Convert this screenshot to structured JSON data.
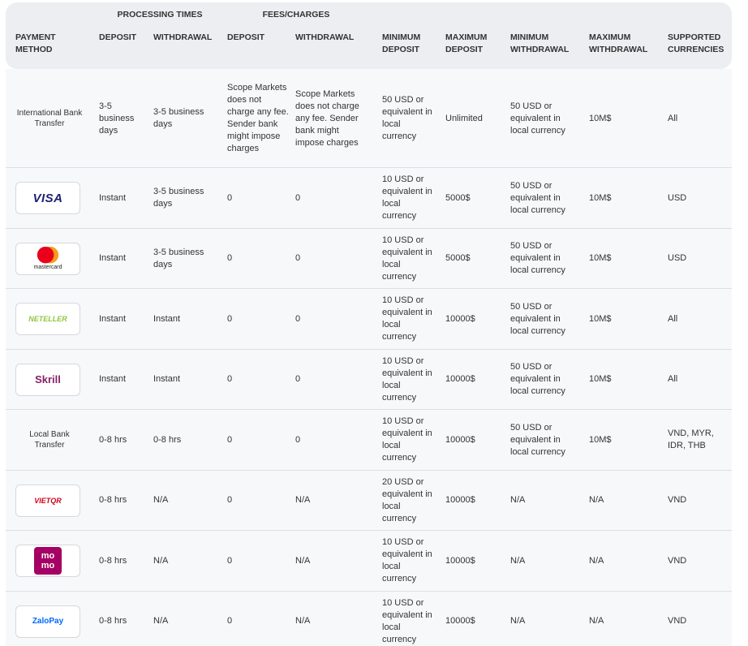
{
  "header": {
    "groups": [
      "PROCESSING TIMES",
      "FEES/CHARGES"
    ],
    "columns": [
      "PAYMENT METHOD",
      "DEPOSIT",
      "WITHDRAWAL",
      "DEPOSIT",
      "WITHDRAWAL",
      "MINIMUM DEPOSIT",
      "MAXIMUM DEPOSIT",
      "MINIMUM WITHDRAWAL",
      "MAXIMUM WITHDRAWAL",
      "SUPPORTED CURRENCIES"
    ]
  },
  "table": {
    "rows": [
      {
        "method": "International Bank Transfer",
        "cells": [
          "3-5 business days",
          "3-5 business days",
          "Scope Markets does not charge any fee. Sender bank might impose charges",
          "Scope Markets does not charge any fee. Sender bank might impose charges",
          "50 USD or equivalent in local currency",
          "Unlimited",
          "50 USD or equivalent in local currency",
          "10M$",
          "All"
        ]
      },
      {
        "logo": "VISA",
        "cells": [
          "Instant",
          "3-5 business days",
          "0",
          "0",
          "10 USD or equivalent in local currency",
          "5000$",
          "50 USD or equivalent in local currency",
          "10M$",
          "USD"
        ]
      },
      {
        "logo": "mastercard",
        "cells": [
          "Instant",
          "3-5 business days",
          "0",
          "0",
          "10 USD or equivalent in local currency",
          "5000$",
          "50 USD or equivalent in local currency",
          "10M$",
          "USD"
        ]
      },
      {
        "logo": "NETELLER",
        "cells": [
          "Instant",
          "Instant",
          "0",
          "0",
          "10 USD or equivalent in local currency",
          "10000$",
          "50 USD or equivalent in local currency",
          "10M$",
          "All"
        ]
      },
      {
        "logo": "Skrill",
        "cells": [
          "Instant",
          "Instant",
          "0",
          "0",
          "10 USD or equivalent in local currency",
          "10000$",
          "50 USD or equivalent in local currency",
          "10M$",
          "All"
        ]
      },
      {
        "method": "Local Bank Transfer",
        "cells": [
          "0-8 hrs",
          "0-8 hrs",
          "0",
          "0",
          "10 USD or equivalent in local currency",
          "10000$",
          "50 USD or equivalent in local currency",
          "10M$",
          "VND, MYR, IDR, THB"
        ]
      },
      {
        "logo": "VIETQR",
        "cells": [
          "0-8 hrs",
          "N/A",
          "0",
          "N/A",
          "20 USD or equivalent in local currency",
          "10000$",
          "N/A",
          "N/A",
          "VND"
        ]
      },
      {
        "logo": "momo",
        "cells": [
          "0-8 hrs",
          "N/A",
          "0",
          "N/A",
          "10 USD or equivalent in local currency",
          "10000$",
          "N/A",
          "N/A",
          "VND"
        ]
      },
      {
        "logo": "ZaloPay",
        "cells": [
          "0-8 hrs",
          "N/A",
          "0",
          "N/A",
          "10 USD or equivalent in local currency",
          "10000$",
          "N/A",
          "N/A",
          "VND"
        ]
      }
    ]
  }
}
